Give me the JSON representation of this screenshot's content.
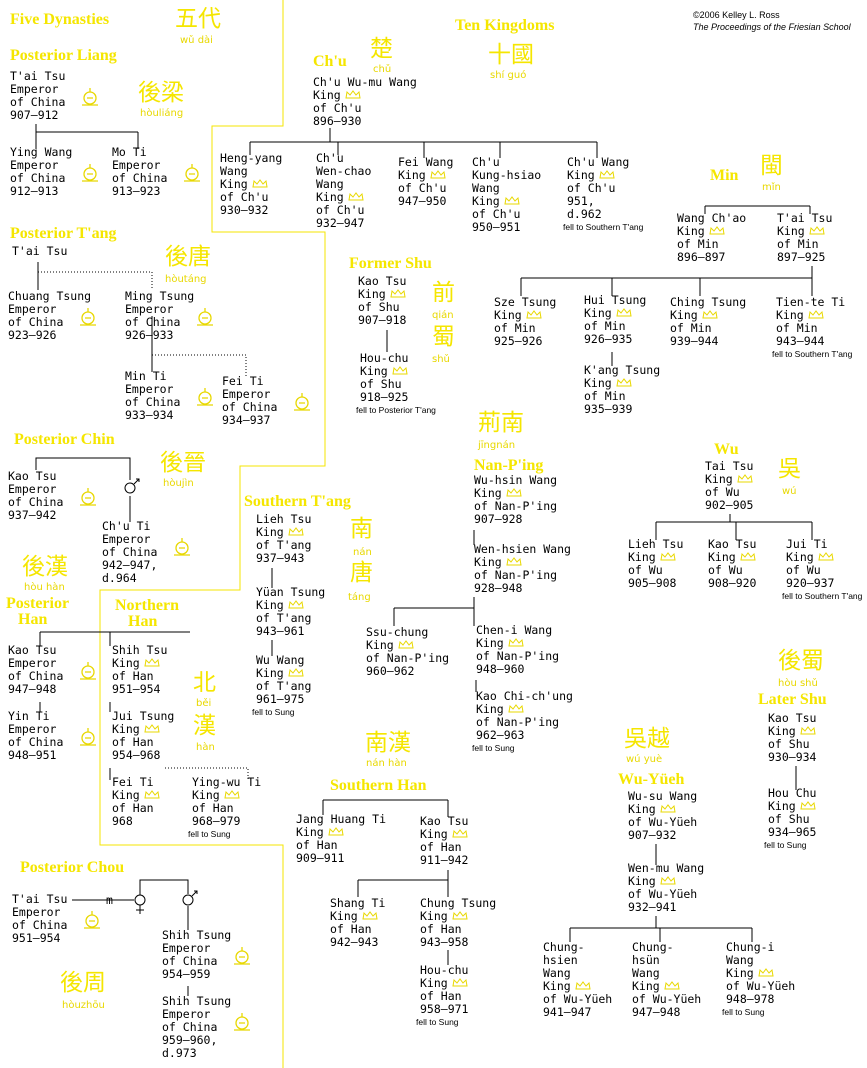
{
  "credit": [
    "©2006  Kelley L. Ross",
    "The Proceedings of the Friesian School"
  ],
  "marriage": "m",
  "sections": [
    {
      "title": [
        "Five Dynasties"
      ],
      "chinese": [
        "五代"
      ],
      "pinyin": [
        "wǔ dài"
      ]
    },
    {
      "title": [
        "Ten Kingdoms"
      ],
      "chinese": [
        "十國"
      ],
      "pinyin": [
        "shí guó"
      ]
    },
    {
      "title": [
        "Posterior Liang"
      ],
      "chinese": [
        "後梁"
      ],
      "pinyin": [
        "hòuliáng"
      ]
    },
    {
      "title": [
        "Posterior T'ang"
      ],
      "chinese": [
        "後唐"
      ],
      "pinyin": [
        "hòutáng"
      ]
    },
    {
      "title": [
        "Posterior Chin"
      ],
      "chinese": [
        "後晉"
      ],
      "pinyin": [
        "hòujìn"
      ]
    },
    {
      "title": [
        "Posterior",
        "Han"
      ],
      "chinese": [
        "後漢"
      ],
      "pinyin": [
        "hòu hàn"
      ]
    },
    {
      "title": [
        "Northern",
        "Han"
      ],
      "chinese": [
        "北",
        "漢"
      ],
      "pinyin": [
        "běi",
        "hàn"
      ]
    },
    {
      "title": [
        "Posterior Chou"
      ],
      "chinese": [
        "後周"
      ],
      "pinyin": [
        "hòuzhōu"
      ]
    },
    {
      "title": [
        "Ch'u"
      ],
      "chinese": [
        "楚"
      ],
      "pinyin": [
        "chǔ"
      ]
    },
    {
      "title": [
        "Min"
      ],
      "chinese": [
        "閩"
      ],
      "pinyin": [
        "mǐn"
      ]
    },
    {
      "title": [
        "Former Shu"
      ],
      "chinese": [
        "前",
        "蜀"
      ],
      "pinyin": [
        "qián",
        "shǔ"
      ]
    },
    {
      "title": [
        "Nan-P'ing"
      ],
      "chinese": [
        "荊南"
      ],
      "pinyin": [
        "jīngnán"
      ]
    },
    {
      "title": [
        "Wu"
      ],
      "chinese": [
        "吳"
      ],
      "pinyin": [
        "wú"
      ]
    },
    {
      "title": [
        "Southern T'ang"
      ],
      "chinese": [
        "南",
        "唐"
      ],
      "pinyin": [
        "nán",
        "táng"
      ]
    },
    {
      "title": [
        "Later Shu"
      ],
      "chinese": [
        "後蜀"
      ],
      "pinyin": [
        "hòu shǔ"
      ]
    },
    {
      "title": [
        "Southern Han"
      ],
      "chinese": [
        "南漢"
      ],
      "pinyin": [
        "nán hàn"
      ]
    },
    {
      "title": [
        "Wu-Yüeh"
      ],
      "chinese": [
        "吳越"
      ],
      "pinyin": [
        "wú yuè"
      ]
    }
  ],
  "nodes": [
    {
      "lines": [
        "T'ai Tsu",
        "Emperor",
        "of China",
        "907–912"
      ]
    },
    {
      "lines": [
        "Ying Wang",
        "Emperor",
        "of China",
        "912–913"
      ]
    },
    {
      "lines": [
        "Mo Ti",
        "Emperor",
        "of China",
        "913–923"
      ]
    },
    {
      "lines": [
        "T'ai Tsu"
      ]
    },
    {
      "lines": [
        "Chuang Tsung",
        "Emperor",
        "of China",
        "923–926"
      ]
    },
    {
      "lines": [
        "Ming Tsung",
        "Emperor",
        "of China",
        "926–933"
      ]
    },
    {
      "lines": [
        "Min Ti",
        "Emperor",
        "of China",
        "933–934"
      ]
    },
    {
      "lines": [
        "Fei Ti",
        "Emperor",
        "of China",
        "934–937"
      ]
    },
    {
      "lines": [
        "Kao Tsu",
        "Emperor",
        "of China",
        "937–942"
      ]
    },
    {
      "lines": [
        "Ch'u Ti",
        "Emperor",
        "of China",
        "942–947,",
        "d.964"
      ]
    },
    {
      "lines": [
        "Kao Tsu",
        "Emperor",
        "of China",
        "947–948"
      ]
    },
    {
      "lines": [
        "Yin Ti",
        "Emperor",
        "of China",
        "948–951"
      ]
    },
    {
      "lines": [
        "Shih Tsu",
        "King",
        "of Han",
        "951–954"
      ]
    },
    {
      "lines": [
        "Jui Tsung",
        "King",
        "of Han",
        "954–968"
      ]
    },
    {
      "lines": [
        "Fei Ti",
        "King",
        "of Han",
        "968"
      ]
    },
    {
      "lines": [
        "Ying-wu Ti",
        "King",
        "of Han",
        "968–979"
      ],
      "note": "fell to Sung"
    },
    {
      "lines": [
        "T'ai Tsu",
        "Emperor",
        "of China",
        "951–954"
      ]
    },
    {
      "lines": [
        "Shih Tsung",
        "Emperor",
        "of China",
        "954–959"
      ]
    },
    {
      "lines": [
        "Shih Tsung",
        "Emperor",
        "of China",
        "959–960,",
        "d.973"
      ]
    },
    {
      "lines": [
        "Ch'u Wu-mu Wang",
        "King",
        "of Ch'u",
        "896–930"
      ]
    },
    {
      "lines": [
        "Heng-yang",
        "Wang",
        "King",
        "of Ch'u",
        "930–932"
      ]
    },
    {
      "lines": [
        "Ch'u",
        "Wen-chao",
        "Wang",
        "King",
        "of Ch'u",
        "932–947"
      ]
    },
    {
      "lines": [
        "Fei Wang",
        "King",
        "of Ch'u",
        "947–950"
      ]
    },
    {
      "lines": [
        "Ch'u",
        "Kung-hsiao",
        "Wang",
        "King",
        "of Ch'u",
        "950–951"
      ]
    },
    {
      "lines": [
        "Ch'u Wang",
        "King",
        "of Ch'u",
        "951,",
        "d.962"
      ],
      "note": "fell to Southern T'ang"
    },
    {
      "lines": [
        "Wang Ch'ao",
        "King",
        "of Min",
        "896–897"
      ]
    },
    {
      "lines": [
        "T'ai Tsu",
        "King",
        "of Min",
        "897–925"
      ]
    },
    {
      "lines": [
        "Sze Tsung",
        "King",
        "of Min",
        "925–926"
      ]
    },
    {
      "lines": [
        "Hui Tsung",
        "King",
        "of Min",
        "926–935"
      ]
    },
    {
      "lines": [
        "Ching Tsung",
        "King",
        "of Min",
        "939–944"
      ]
    },
    {
      "lines": [
        "Tien-te Ti",
        "King",
        "of Min",
        "943–944"
      ],
      "note": "fell to Southern T'ang"
    },
    {
      "lines": [
        "K'ang Tsung",
        "King",
        "of Min",
        "935–939"
      ]
    },
    {
      "lines": [
        "Kao Tsu",
        "King",
        "of Shu",
        "907–918"
      ]
    },
    {
      "lines": [
        "Hou-chu",
        "King",
        "of Shu",
        "918–925"
      ],
      "note": "fell to Posterior T'ang"
    },
    {
      "lines": [
        "Wu-hsin Wang",
        "King",
        "of Nan-P'ing",
        "907–928"
      ]
    },
    {
      "lines": [
        "Wen-hsien Wang",
        "King",
        "of Nan-P'ing",
        "928–948"
      ]
    },
    {
      "lines": [
        "Ssu-chung",
        "King",
        "of Nan-P'ing",
        "960–962"
      ]
    },
    {
      "lines": [
        "Chen-i Wang",
        "King",
        "of Nan-P'ing",
        "948–960"
      ]
    },
    {
      "lines": [
        "Kao Chi-ch'ung",
        "King",
        "of Nan-P'ing",
        "962–963"
      ],
      "note": "fell to Sung"
    },
    {
      "lines": [
        "Tai Tsu",
        "King",
        "of Wu",
        "902–905"
      ]
    },
    {
      "lines": [
        "Lieh Tsu",
        "King",
        "of Wu",
        "905–908"
      ]
    },
    {
      "lines": [
        "Kao Tsu",
        "King",
        "of Wu",
        "908–920"
      ]
    },
    {
      "lines": [
        "Jui Ti",
        "King",
        "of Wu",
        "920–937"
      ],
      "note": "fell to Southern T'ang"
    },
    {
      "lines": [
        "Lieh Tsu",
        "King",
        "of T'ang",
        "937–943"
      ]
    },
    {
      "lines": [
        "Yüan Tsung",
        "King",
        "of T'ang",
        "943–961"
      ]
    },
    {
      "lines": [
        "Wu Wang",
        "King",
        "of T'ang",
        "961–975"
      ],
      "note": "fell to Sung"
    },
    {
      "lines": [
        "Kao Tsu",
        "King",
        "of Shu",
        "930–934"
      ]
    },
    {
      "lines": [
        "Hou Chu",
        "King",
        "of Shu",
        "934–965"
      ],
      "note": "fell to Sung"
    },
    {
      "lines": [
        "Jang Huang Ti",
        "King",
        "of Han",
        "909–911"
      ]
    },
    {
      "lines": [
        "Kao Tsu",
        "King",
        "of Han",
        "911–942"
      ]
    },
    {
      "lines": [
        "Shang Ti",
        "King",
        "of Han",
        "942–943"
      ]
    },
    {
      "lines": [
        "Chung Tsung",
        "King",
        "of Han",
        "943–958"
      ]
    },
    {
      "lines": [
        "Hou-chu",
        "King",
        "of Han",
        "958–971"
      ],
      "note": "fell to Sung"
    },
    {
      "lines": [
        "Wu-su Wang",
        "King",
        "of Wu-Yüeh",
        "907–932"
      ]
    },
    {
      "lines": [
        "Wen-mu Wang",
        "King",
        "of Wu-Yüeh",
        "932–941"
      ]
    },
    {
      "lines": [
        "Chung-",
        "hsien",
        "Wang",
        "King",
        "of Wu-Yüeh",
        "941–947"
      ]
    },
    {
      "lines": [
        "Chung-",
        "hsün",
        "Wang",
        "King",
        "of Wu-Yüeh",
        "947–948"
      ]
    },
    {
      "lines": [
        "Chung-i",
        "Wang",
        "King",
        "of Wu-Yüeh",
        "948–978"
      ],
      "note": "fell to Sung"
    }
  ]
}
